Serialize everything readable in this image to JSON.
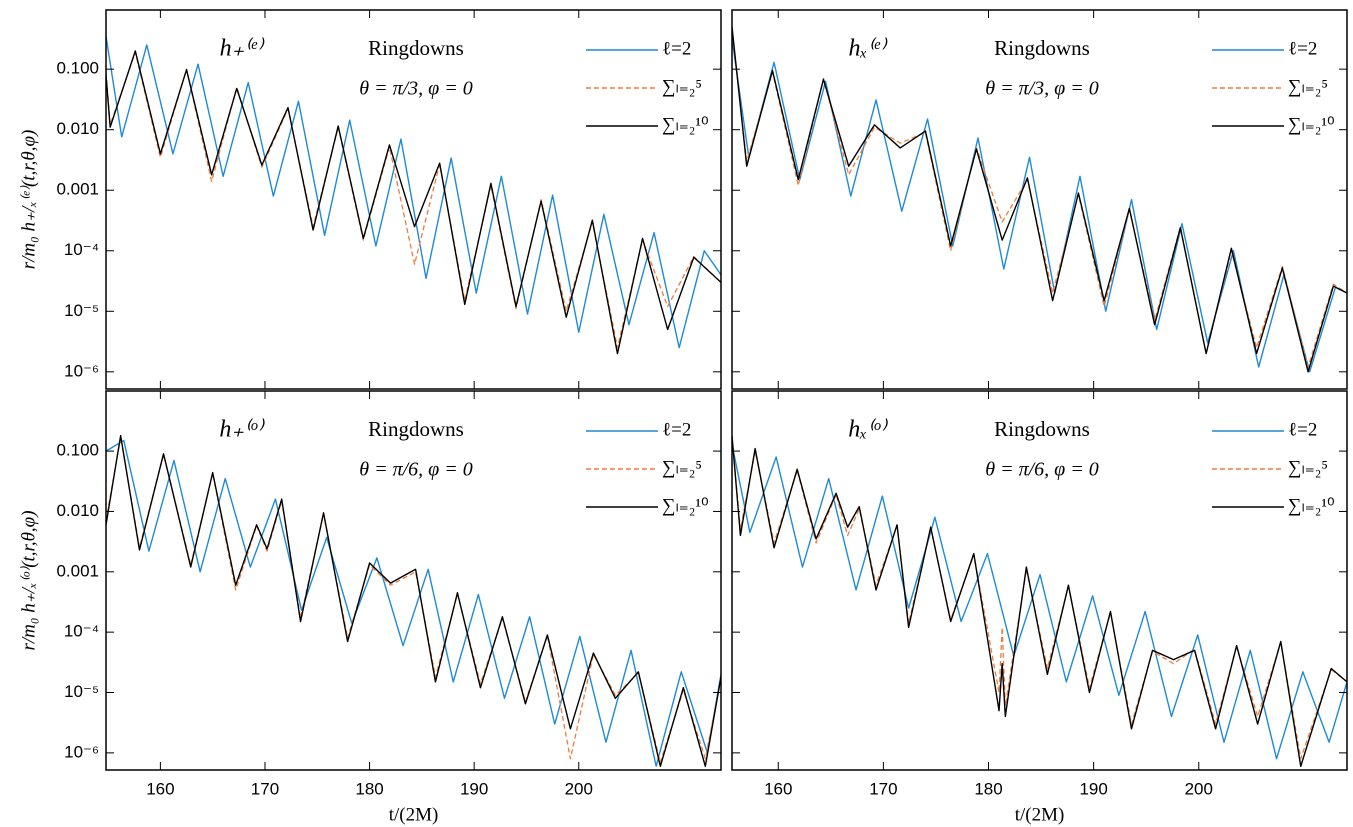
{
  "chart_data": [
    {
      "type": "line",
      "label": "h₊⁽ᵉ⁾",
      "title": "Ringdowns",
      "subtitle": "θ = π/3, φ = 0",
      "ylabel": "r/m₀ h₊/ₓ⁽ᵉ⁾(t,r,θ,φ)",
      "yscale": "log",
      "legend": "upper right",
      "xlim": [
        154.8,
        213.6
      ],
      "ylim": [
        5.2e-07,
        0.95
      ],
      "xticks": [
        160,
        170,
        180,
        190,
        200
      ],
      "show_xtick_labels": false,
      "show_ytick_labels": true,
      "yticks": [
        {
          "value": 0.1,
          "label": "0.100"
        },
        {
          "value": 0.01,
          "label": "0.010"
        },
        {
          "value": 0.001,
          "label": "0.001"
        },
        {
          "value": 0.0001,
          "label": "10⁻⁴"
        },
        {
          "value": 1e-05,
          "label": "10⁻⁵"
        },
        {
          "value": 1e-06,
          "label": "10⁻⁶"
        }
      ],
      "series": [
        {
          "name": "ℓ=2",
          "color": "#1f8ad6",
          "style": "solid",
          "x": [
            154.8,
            156.3,
            158.7,
            161.2,
            163.6,
            166.0,
            168.4,
            170.8,
            173.2,
            175.7,
            178.1,
            180.6,
            183.0,
            185.4,
            187.8,
            190.2,
            192.6,
            195.1,
            197.5,
            200.0,
            202.4,
            204.8,
            207.2,
            209.6,
            212.0,
            213.6
          ],
          "values": [
            0.35,
            0.0076,
            0.25,
            0.004,
            0.121,
            0.0017,
            0.06,
            0.0008,
            0.0295,
            0.00018,
            0.0144,
            0.00012,
            0.007,
            3.5e-05,
            0.0034,
            2e-05,
            0.0017,
            9e-06,
            0.00083,
            4.5e-06,
            0.0004,
            6e-06,
            0.0002,
            2.5e-06,
            0.0001,
            4e-05
          ]
        },
        {
          "name": "∑ₗ₌₂⁵",
          "color": "#f07c3c",
          "style": "dashed",
          "x": [
            154.8,
            155.2,
            157.6,
            160.0,
            162.5,
            164.9,
            167.3,
            169.7,
            172.2,
            174.6,
            177.0,
            179.4,
            181.9,
            184.3,
            186.7,
            189.1,
            191.6,
            194.0,
            196.4,
            198.8,
            201.3,
            203.7,
            206.1,
            208.5,
            211.0,
            213.6
          ],
          "values": [
            0.09,
            0.012,
            0.19,
            0.0035,
            0.1,
            0.0014,
            0.05,
            0.0024,
            0.022,
            0.00025,
            0.011,
            0.00015,
            0.0052,
            6e-05,
            0.0027,
            1.5e-05,
            0.0012,
            1.1e-05,
            0.0007,
            1e-05,
            0.0003,
            2.5e-06,
            0.00015,
            1.2e-05,
            8e-05,
            3e-05
          ]
        },
        {
          "name": "∑ₗ₌₂¹⁰",
          "color": "#000000",
          "style": "solid",
          "x": [
            154.8,
            155.2,
            157.6,
            160.0,
            162.5,
            164.9,
            167.3,
            169.7,
            172.2,
            174.6,
            177.0,
            179.4,
            181.9,
            184.3,
            186.7,
            189.1,
            191.6,
            194.0,
            196.4,
            198.8,
            201.3,
            203.7,
            206.1,
            208.5,
            211.0,
            213.6
          ],
          "values": [
            0.08,
            0.011,
            0.2,
            0.004,
            0.098,
            0.0018,
            0.048,
            0.0026,
            0.0232,
            0.00022,
            0.0115,
            0.00016,
            0.0056,
            0.00025,
            0.0028,
            1.3e-05,
            0.0013,
            1.2e-05,
            0.00066,
            8e-06,
            0.00032,
            2e-06,
            0.00016,
            5e-06,
            7.8e-05,
            3e-05
          ]
        }
      ]
    },
    {
      "type": "line",
      "label": "hₓ⁽ᵉ⁾",
      "title": "Ringdowns",
      "subtitle": "θ = π/3, φ = 0",
      "yscale": "log",
      "legend": "upper right",
      "xlim": [
        155.6,
        214.1
      ],
      "ylim": [
        5.2e-07,
        0.95
      ],
      "xticks": [
        160,
        170,
        180,
        190,
        200
      ],
      "show_xtick_labels": false,
      "show_ytick_labels": false,
      "yticks": [
        0.1,
        0.01,
        0.001,
        0.0001,
        1e-05,
        1e-06
      ],
      "series": [
        {
          "name": "ℓ=2",
          "color": "#1f8ad6",
          "style": "solid",
          "x": [
            155.6,
            157.2,
            159.6,
            162.05,
            164.5,
            166.9,
            169.3,
            171.75,
            174.2,
            176.6,
            179.0,
            181.45,
            183.9,
            186.3,
            188.7,
            191.15,
            193.6,
            196.0,
            198.4,
            200.85,
            203.3,
            205.7,
            208.1,
            210.55,
            213.0,
            214.1
          ],
          "values": [
            0.32,
            0.0035,
            0.13,
            0.0015,
            0.063,
            0.0008,
            0.031,
            0.00045,
            0.015,
            0.00012,
            0.0073,
            5e-05,
            0.0035,
            2e-05,
            0.0017,
            1e-05,
            0.0007,
            5e-06,
            0.00028,
            3e-06,
            0.0001,
            1.2e-06,
            4e-05,
            1e-06,
            2.5e-05,
            2e-05
          ]
        },
        {
          "name": "∑ₗ₌₂⁵",
          "color": "#f07c3c",
          "style": "dashed",
          "x": [
            155.6,
            157.0,
            159.45,
            161.9,
            164.3,
            166.7,
            169.15,
            171.6,
            174.0,
            176.4,
            178.85,
            181.3,
            183.7,
            186.1,
            188.55,
            191.0,
            193.4,
            195.8,
            198.25,
            200.7,
            203.1,
            205.5,
            207.95,
            210.4,
            212.8,
            214.1
          ],
          "values": [
            0.45,
            0.003,
            0.09,
            0.0012,
            0.07,
            0.0018,
            0.011,
            0.006,
            0.009,
            0.0001,
            0.005,
            0.0003,
            0.0015,
            2e-05,
            0.00085,
            1.2e-05,
            0.00048,
            7e-06,
            0.00025,
            2e-06,
            0.0001,
            2.5e-06,
            5.5e-05,
            1.2e-06,
            2.8e-05,
            2e-05
          ]
        },
        {
          "name": "∑ₗ₌₂¹⁰",
          "color": "#000000",
          "style": "solid",
          "x": [
            155.6,
            157.0,
            159.45,
            161.9,
            164.3,
            166.7,
            169.15,
            171.6,
            174.0,
            176.4,
            178.85,
            181.3,
            183.7,
            186.1,
            188.55,
            191.0,
            193.4,
            195.8,
            198.25,
            200.7,
            203.1,
            205.5,
            207.95,
            210.4,
            212.8,
            214.1
          ],
          "values": [
            0.5,
            0.0025,
            0.095,
            0.0015,
            0.068,
            0.0025,
            0.012,
            0.005,
            0.0095,
            0.00012,
            0.0048,
            0.00015,
            0.0016,
            1.5e-05,
            0.0009,
            1.5e-05,
            0.0005,
            6e-06,
            0.00024,
            2e-06,
            0.00011,
            2e-06,
            5.2e-05,
            1e-06,
            2.6e-05,
            2e-05
          ]
        }
      ]
    },
    {
      "type": "line",
      "label": "h₊⁽ᵒ⁾",
      "title": "Ringdowns",
      "subtitle": "θ = π/6, φ = 0",
      "ylabel": "r/m₀ h₊/ₓ⁽ᵒ⁾(t,r,θ,φ)",
      "xlabel": "t/(2M)",
      "yscale": "log",
      "legend": "upper right",
      "xlim": [
        154.8,
        213.6
      ],
      "ylim": [
        5.2e-07,
        0.99
      ],
      "xticks": [
        160,
        170,
        180,
        190,
        200
      ],
      "show_xtick_labels": true,
      "show_ytick_labels": true,
      "yticks": [
        {
          "value": 0.1,
          "label": "0.100"
        },
        {
          "value": 0.01,
          "label": "0.010"
        },
        {
          "value": 0.001,
          "label": "0.001"
        },
        {
          "value": 0.0001,
          "label": "10⁻⁴"
        },
        {
          "value": 1e-05,
          "label": "10⁻⁵"
        },
        {
          "value": 1e-06,
          "label": "10⁻⁶"
        }
      ],
      "series": [
        {
          "name": "ℓ=2",
          "color": "#1f8ad6",
          "style": "solid",
          "x": [
            154.8,
            156.5,
            158.9,
            161.3,
            163.8,
            166.2,
            168.6,
            171.0,
            173.5,
            175.9,
            178.3,
            180.7,
            183.2,
            185.6,
            188.0,
            190.4,
            192.9,
            195.3,
            197.7,
            200.1,
            202.6,
            205.0,
            207.4,
            209.8,
            212.3,
            213.6
          ],
          "values": [
            0.1,
            0.15,
            0.0022,
            0.07,
            0.001,
            0.035,
            0.0012,
            0.016,
            0.00023,
            0.0037,
            0.00014,
            0.0017,
            6e-05,
            0.0011,
            1.5e-05,
            0.00042,
            8e-06,
            0.00018,
            3e-06,
            8.5e-05,
            1.5e-06,
            5e-05,
            6e-07,
            2.2e-05,
            1e-06,
            2e-05
          ]
        },
        {
          "name": "∑ₗ₌₂⁵",
          "color": "#f07c3c",
          "style": "dashed",
          "x": [
            154.8,
            156.2,
            158.0,
            160.3,
            162.9,
            165.0,
            167.2,
            169.2,
            170.2,
            171.6,
            173.4,
            175.6,
            177.9,
            180.0,
            182.0,
            184.4,
            186.3,
            188.4,
            190.6,
            192.7,
            194.9,
            197.0,
            199.2,
            201.4,
            203.5,
            205.7,
            207.8,
            210.0,
            212.1,
            213.6
          ],
          "values": [
            0.007,
            0.17,
            0.0025,
            0.088,
            0.0013,
            0.043,
            0.0005,
            0.0058,
            0.0022,
            0.015,
            0.00017,
            0.0092,
            8e-05,
            0.0013,
            0.0006,
            0.001,
            1.8e-05,
            0.00043,
            1.4e-05,
            0.00017,
            7e-06,
            8.8e-05,
            8e-07,
            4.3e-05,
            9e-06,
            2.1e-05,
            7e-07,
            1.1e-05,
            8e-07,
            1.7e-05
          ]
        },
        {
          "name": "∑ₗ₌₂¹⁰",
          "color": "#000000",
          "style": "solid",
          "x": [
            154.8,
            156.2,
            158.0,
            160.3,
            162.9,
            165.0,
            167.2,
            169.2,
            170.2,
            171.6,
            173.4,
            175.6,
            177.9,
            180.0,
            182.0,
            184.4,
            186.3,
            188.4,
            190.6,
            192.7,
            194.9,
            197.0,
            199.2,
            201.4,
            203.5,
            205.7,
            207.8,
            210.0,
            212.1,
            213.6
          ],
          "values": [
            0.006,
            0.18,
            0.0023,
            0.09,
            0.0012,
            0.044,
            0.0006,
            0.006,
            0.0024,
            0.016,
            0.00015,
            0.0095,
            7e-05,
            0.0014,
            0.00065,
            0.0011,
            1.5e-05,
            0.00045,
            1.2e-05,
            0.00018,
            6.5e-06,
            9e-05,
            2.5e-06,
            4.5e-05,
            8e-06,
            2.2e-05,
            6e-07,
            1.2e-05,
            6e-07,
            1.8e-05
          ]
        }
      ]
    },
    {
      "type": "line",
      "label": "hₓ⁽ᵒ⁾",
      "title": "Ringdowns",
      "subtitle": "θ = π/6, φ = 0",
      "xlabel": "t/(2M)",
      "yscale": "log",
      "legend": "upper right",
      "xlim": [
        155.6,
        214.1
      ],
      "ylim": [
        5.2e-07,
        0.99
      ],
      "xticks": [
        160,
        170,
        180,
        190,
        200
      ],
      "show_xtick_labels": true,
      "show_ytick_labels": false,
      "yticks": [
        0.1,
        0.01,
        0.001,
        0.0001,
        1e-05,
        1e-06
      ],
      "series": [
        {
          "name": "ℓ=2",
          "color": "#1f8ad6",
          "style": "solid",
          "x": [
            155.6,
            157.3,
            159.8,
            162.3,
            164.8,
            167.4,
            169.9,
            172.4,
            174.9,
            177.4,
            179.9,
            182.4,
            184.9,
            187.4,
            189.9,
            192.4,
            194.9,
            197.4,
            199.9,
            202.4,
            204.9,
            207.4,
            209.9,
            212.4,
            214.1
          ],
          "values": [
            0.13,
            0.0045,
            0.08,
            0.0012,
            0.035,
            0.0005,
            0.018,
            0.00025,
            0.008,
            0.00015,
            0.002,
            4e-05,
            0.0009,
            1.5e-05,
            0.0004,
            9e-06,
            0.00022,
            4e-06,
            9e-05,
            1.5e-06,
            5e-05,
            8e-07,
            2.2e-05,
            1.5e-06,
            1.5e-05
          ]
        },
        {
          "name": "∑ₗ₌₂⁵",
          "color": "#f07c3c",
          "style": "dashed",
          "x": [
            155.6,
            156.4,
            157.8,
            159.6,
            161.8,
            163.6,
            165.5,
            166.6,
            167.7,
            169.3,
            171.3,
            172.4,
            174.5,
            176.4,
            178.6,
            181.0,
            181.3,
            181.6,
            183.6,
            185.6,
            187.6,
            189.6,
            191.6,
            193.6,
            195.6,
            197.6,
            199.6,
            201.6,
            203.6,
            205.6,
            207.8,
            209.7,
            212.6,
            214.1
          ],
          "values": [
            0.17,
            0.005,
            0.1,
            0.003,
            0.048,
            0.003,
            0.019,
            0.004,
            0.011,
            0.0006,
            0.0058,
            0.00014,
            0.0053,
            0.00016,
            0.0019,
            1e-05,
            0.00012,
            6e-06,
            0.0011,
            2.5e-05,
            0.00058,
            1.2e-05,
            0.00021,
            3e-06,
            4.8e-05,
            3e-05,
            5.2e-05,
            3e-06,
            5.8e-05,
            4e-06,
            6.8e-05,
            8e-07,
            2.4e-05,
            1.5e-05
          ]
        },
        {
          "name": "∑ₗ₌₂¹⁰",
          "color": "#000000",
          "style": "solid",
          "x": [
            155.6,
            156.4,
            157.8,
            159.6,
            161.8,
            163.6,
            165.5,
            166.6,
            167.7,
            169.3,
            171.3,
            172.4,
            174.5,
            176.4,
            178.6,
            181.0,
            181.3,
            181.6,
            183.6,
            185.6,
            187.6,
            189.6,
            191.6,
            193.6,
            195.6,
            197.6,
            199.6,
            201.6,
            203.6,
            205.6,
            207.8,
            209.7,
            212.6,
            214.1
          ],
          "values": [
            0.18,
            0.004,
            0.11,
            0.0025,
            0.05,
            0.0035,
            0.02,
            0.0055,
            0.012,
            0.0005,
            0.006,
            0.00012,
            0.0055,
            0.00015,
            0.002,
            5e-06,
            3e-05,
            4e-06,
            0.0012,
            2e-05,
            0.0006,
            1e-05,
            0.00022,
            2.5e-06,
            5e-05,
            3.5e-05,
            5e-05,
            2.5e-06,
            6e-05,
            3e-06,
            7e-05,
            6e-07,
            2.5e-05,
            1.5e-05
          ]
        }
      ]
    }
  ]
}
